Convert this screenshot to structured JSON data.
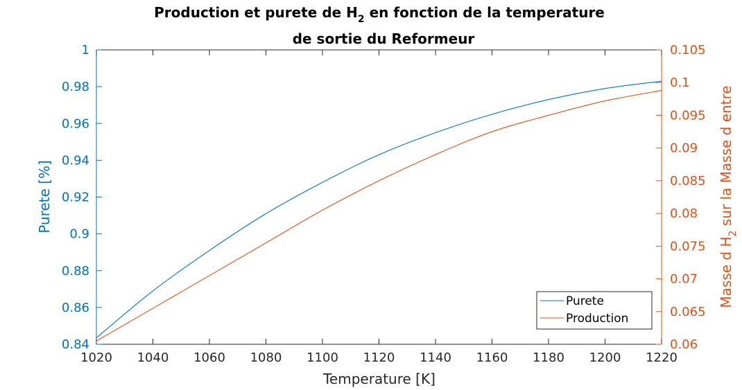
{
  "chart_data": {
    "type": "line",
    "title": {
      "line1_prefix": "Production et purete de H",
      "line1_sub": "2",
      "line1_suffix": " en fonction de la temperature",
      "line2": "de sortie du Reformeur"
    },
    "xlabel": "Temperature [K]",
    "ylabel_left": "Purete [%]",
    "ylabel_right": {
      "prefix": "Masse d H",
      "sub": "2",
      "suffix": " sur la Masse d entre"
    },
    "xlim": [
      1020,
      1220
    ],
    "ylim_left": [
      0.84,
      1.0
    ],
    "ylim_right": [
      0.06,
      0.105
    ],
    "x_ticks": [
      "1020",
      "1040",
      "1060",
      "1080",
      "1100",
      "1120",
      "1140",
      "1160",
      "1180",
      "1200",
      "1220"
    ],
    "y_left_ticks": [
      "0.84",
      "0.86",
      "0.88",
      "0.9",
      "0.92",
      "0.94",
      "0.96",
      "0.98",
      "1"
    ],
    "y_right_ticks": [
      "0.06",
      "0.065",
      "0.07",
      "0.075",
      "0.08",
      "0.085",
      "0.09",
      "0.095",
      "0.1",
      "0.105"
    ],
    "colors": {
      "left": "#0072BD",
      "right": "#D95319",
      "axis": "#262626"
    },
    "legend_position": "bottom-right",
    "series": [
      {
        "name": "Purete",
        "axis": "left",
        "color": "#0072BD",
        "x": [
          1020,
          1040,
          1060,
          1080,
          1100,
          1120,
          1140,
          1160,
          1180,
          1200,
          1220
        ],
        "values": [
          0.8435,
          0.869,
          0.891,
          0.911,
          0.928,
          0.943,
          0.955,
          0.965,
          0.973,
          0.979,
          0.983
        ]
      },
      {
        "name": "Production",
        "axis": "right",
        "color": "#D95319",
        "x": [
          1020,
          1040,
          1060,
          1080,
          1100,
          1120,
          1140,
          1160,
          1180,
          1200,
          1220
        ],
        "values": [
          0.0605,
          0.0655,
          0.0705,
          0.0755,
          0.0805,
          0.085,
          0.089,
          0.0925,
          0.095,
          0.0972,
          0.0988
        ]
      }
    ]
  }
}
